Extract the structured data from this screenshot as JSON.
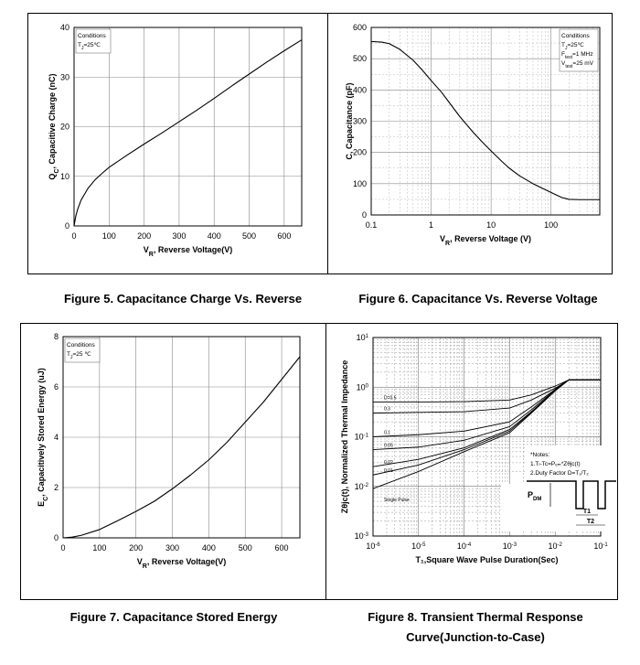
{
  "captions": {
    "fig5": "Figure 5. Capacitance Charge Vs. Reverse",
    "fig6": "Figure 6. Capacitance Vs. Reverse Voltage",
    "fig7": "Figure 7. Capacitance Stored Energy",
    "fig8_line1": "Figure 8. Transient Thermal Response",
    "fig8_line2": "Curve(Junction-to-Case)"
  },
  "fig8_legend": {
    "notes_title": "*Notes:",
    "note1": "1.Tₗ-Tc=Pₑₘ*Zθjc(t)",
    "note2": "2.Duty Factor D=T₁/T₂",
    "pdm": "P",
    "pdm_sub": "DM",
    "t1": "T1",
    "t2": "T2"
  },
  "chart_data": [
    {
      "type": "line",
      "id": "fig5",
      "xlabel_main": "V",
      "xlabel_sub": "R",
      "xlabel_rest": ",  Reverse Voltage(V)",
      "ylabel_main": "Q",
      "ylabel_sub": "C",
      "ylabel_rest": ", Capacitive Charge (nC)",
      "xlim": [
        0,
        650
      ],
      "ylim": [
        0,
        40
      ],
      "xticks": [
        0,
        100,
        200,
        300,
        400,
        500,
        600
      ],
      "yticks": [
        0,
        10,
        20,
        30,
        40
      ],
      "conditions": [
        "Conditions",
        "T",
        "J",
        "=25℃"
      ],
      "series": [
        {
          "x": [
            0,
            5,
            10,
            20,
            40,
            60,
            80,
            100,
            150,
            200,
            250,
            300,
            350,
            400,
            450,
            500,
            550,
            600,
            650
          ],
          "values": [
            0,
            2.0,
            3.3,
            5.2,
            7.6,
            9.3,
            10.6,
            11.8,
            14.2,
            16.5,
            18.7,
            21.0,
            23.3,
            25.7,
            28.2,
            30.6,
            33.0,
            35.3,
            37.5
          ]
        }
      ]
    },
    {
      "type": "line",
      "id": "fig6",
      "xscale": "log",
      "xlabel_main": "V",
      "xlabel_sub": "R",
      "xlabel_rest": ",  Reverse Voltage (V)",
      "ylabel_main": "C",
      "ylabel_rest": ", Capacitance (pF)",
      "xlim": [
        0.1,
        650
      ],
      "ylim": [
        0,
        600
      ],
      "xticks": [
        0.1,
        1,
        10,
        100
      ],
      "xticklabels": [
        "0.1",
        "1",
        "10",
        "100"
      ],
      "yticks": [
        0,
        100,
        200,
        300,
        400,
        500,
        600
      ],
      "conditions": [
        "Conditions",
        "T",
        "J",
        "=25℃",
        "F",
        "test",
        "=1 MHz",
        "V",
        "test",
        "=25 mV"
      ],
      "series": [
        {
          "x": [
            0.1,
            0.15,
            0.2,
            0.3,
            0.5,
            0.7,
            1,
            1.5,
            2,
            3,
            5,
            7,
            10,
            15,
            20,
            30,
            50,
            100,
            150,
            200,
            300,
            650
          ],
          "values": [
            555,
            553,
            548,
            530,
            495,
            465,
            430,
            392,
            360,
            315,
            265,
            235,
            205,
            172,
            150,
            125,
            100,
            72,
            56,
            50,
            49,
            49
          ]
        }
      ]
    },
    {
      "type": "line",
      "id": "fig7",
      "xlabel_main": "V",
      "xlabel_sub": "R",
      "xlabel_rest": ",  Reverse Voltage(V)",
      "ylabel_main": "E",
      "ylabel_sub": "C",
      "ylabel_rest": ", Capacitively Stored Energy (uJ)",
      "xlim": [
        0,
        650
      ],
      "ylim": [
        0,
        8
      ],
      "xticks": [
        0,
        100,
        200,
        300,
        400,
        500,
        600
      ],
      "yticks": [
        0,
        2,
        4,
        6,
        8
      ],
      "conditions": [
        "Conditions",
        "T",
        "J",
        "=25 ℃"
      ],
      "series": [
        {
          "x": [
            0,
            25,
            50,
            100,
            150,
            200,
            250,
            300,
            350,
            400,
            450,
            500,
            550,
            600,
            650
          ],
          "values": [
            0,
            0.03,
            0.1,
            0.33,
            0.68,
            1.05,
            1.45,
            1.95,
            2.5,
            3.1,
            3.8,
            4.6,
            5.4,
            6.3,
            7.2
          ]
        }
      ]
    },
    {
      "type": "line",
      "id": "fig8",
      "xscale": "log",
      "yscale": "log",
      "xlabel": "T₁,Square Wave Pulse Duration(Sec)",
      "ylabel_main": "Z",
      "ylabel_rest": "θjc(t), Normalized Thermal Impedance",
      "xlim": [
        1e-06,
        0.1
      ],
      "ylim": [
        0.001,
        10
      ],
      "xticks_base": [
        "10",
        "10",
        "10",
        "10",
        "10",
        "10"
      ],
      "xticks_exp": [
        "-6",
        "-5",
        "-4",
        "-3",
        "-2",
        "-1"
      ],
      "yticks_base": [
        "10",
        "10",
        "10",
        "10",
        "10"
      ],
      "yticks_exp": [
        "-3",
        "-2",
        "-1",
        "0",
        "1"
      ],
      "series": [
        {
          "name": "D=0.5",
          "x": [
            1e-06,
            1e-05,
            0.0001,
            0.001,
            0.003,
            0.01,
            0.02,
            0.1
          ],
          "values": [
            0.5,
            0.5,
            0.51,
            0.55,
            0.7,
            1.05,
            1.4,
            1.4
          ]
        },
        {
          "name": "0.3",
          "x": [
            1e-06,
            1e-05,
            0.0001,
            0.001,
            0.003,
            0.01,
            0.02,
            0.1
          ],
          "values": [
            0.3,
            0.31,
            0.32,
            0.38,
            0.55,
            0.95,
            1.4,
            1.4
          ]
        },
        {
          "name": "0.1",
          "x": [
            1e-06,
            1e-05,
            0.0001,
            0.001,
            0.003,
            0.01,
            0.02,
            0.1
          ],
          "values": [
            0.1,
            0.11,
            0.13,
            0.2,
            0.4,
            0.9,
            1.4,
            1.4
          ]
        },
        {
          "name": "0.05",
          "x": [
            1e-06,
            1e-05,
            0.0001,
            0.001,
            0.003,
            0.01,
            0.02,
            0.1
          ],
          "values": [
            0.055,
            0.062,
            0.085,
            0.16,
            0.35,
            0.88,
            1.4,
            1.4
          ]
        },
        {
          "name": "0.02",
          "x": [
            1e-06,
            1e-05,
            0.0001,
            0.001,
            0.003,
            0.01,
            0.02,
            0.1
          ],
          "values": [
            0.025,
            0.035,
            0.06,
            0.14,
            0.32,
            0.86,
            1.4,
            1.4
          ]
        },
        {
          "name": "0.01",
          "x": [
            1e-06,
            1e-05,
            0.0001,
            0.001,
            0.003,
            0.01,
            0.02,
            0.1
          ],
          "values": [
            0.017,
            0.027,
            0.055,
            0.13,
            0.31,
            0.85,
            1.4,
            1.4
          ]
        },
        {
          "name": "Single Pulse",
          "x": [
            1e-06,
            1e-05,
            0.0001,
            0.001,
            0.003,
            0.01,
            0.02,
            0.1
          ],
          "values": [
            0.009,
            0.02,
            0.05,
            0.12,
            0.3,
            0.84,
            1.4,
            1.4
          ]
        }
      ]
    }
  ]
}
